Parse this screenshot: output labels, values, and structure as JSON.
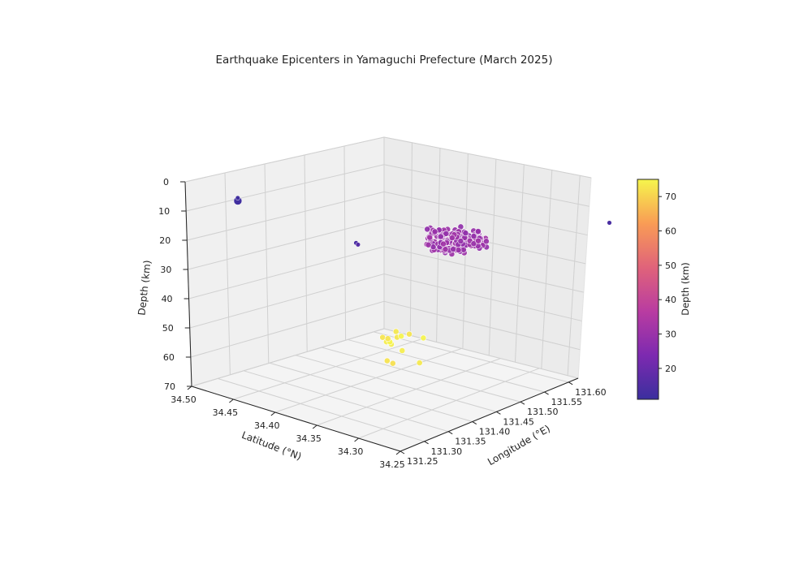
{
  "chart_data": {
    "type": "scatter",
    "title": "Earthquake Epicenters in Yamaguchi Prefecture (March 2025)",
    "projection": "3d",
    "xlabel": "Longitude (°E)",
    "ylabel": "Latitude (°N)",
    "zlabel": "Depth (km)",
    "xlim": [
      131.25,
      131.62
    ],
    "ylim": [
      34.25,
      34.5
    ],
    "zlim": [
      70,
      0
    ],
    "z_inverted": true,
    "x_ticks": [
      "131.25",
      "131.30",
      "131.35",
      "131.40",
      "131.45",
      "131.50",
      "131.55",
      "131.60"
    ],
    "y_ticks": [
      "34.50",
      "34.45",
      "34.40",
      "34.35",
      "34.30",
      "34.25"
    ],
    "z_ticks": [
      "0",
      "10",
      "20",
      "30",
      "40",
      "50",
      "60",
      "70"
    ],
    "grid": true,
    "colormap": "plasma",
    "colorbar": {
      "label": "Depth (km)",
      "min": 11,
      "max": 75,
      "ticks": [
        "20",
        "30",
        "40",
        "50",
        "60",
        "70"
      ],
      "tick_values": [
        20,
        30,
        40,
        50,
        60,
        70
      ],
      "placement": "right"
    },
    "clusters": [
      {
        "lon": 131.43,
        "lat": 34.29,
        "depth_range": [
          10,
          15
        ],
        "color_depth": 30,
        "count": 180,
        "note_visible": false
      },
      {
        "lon": 131.56,
        "lat": 34.43,
        "depth_range": [
          62,
          72
        ],
        "color_depth": 74,
        "count": 14,
        "note_visible": false
      }
    ],
    "points": [
      {
        "lon": 131.27,
        "lat": 34.45,
        "depth": 3,
        "color_depth": 12,
        "size": "large"
      },
      {
        "lon": 131.27,
        "lat": 34.45,
        "depth": 2,
        "color_depth": 12,
        "size": "small"
      },
      {
        "lon": 131.35,
        "lat": 34.36,
        "depth": 14,
        "color_depth": 14,
        "size": "small"
      },
      {
        "lon": 131.349,
        "lat": 34.357,
        "depth": 14.3,
        "color_depth": 16,
        "size": "small"
      },
      {
        "lon": 131.58,
        "lat": 34.2,
        "depth": 10,
        "color_depth": 14,
        "size": "small"
      }
    ]
  }
}
